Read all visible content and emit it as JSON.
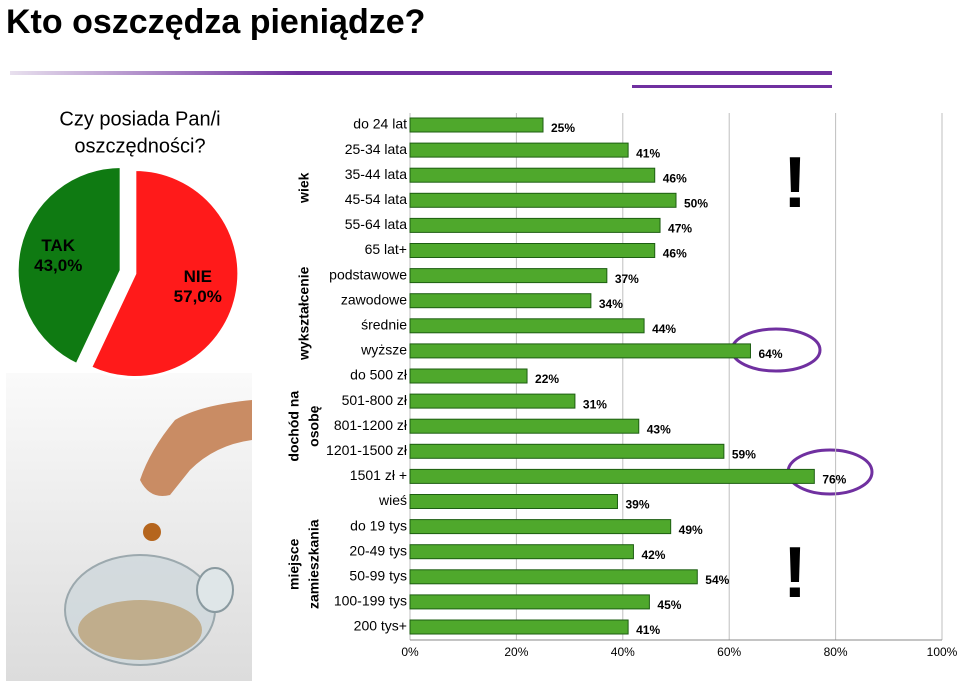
{
  "title": "Kto oszczędza pieniądze?",
  "chart_data": [
    {
      "type": "pie",
      "title": [
        "Czy posiada Pan/i",
        "oszczędności?"
      ],
      "categories": [
        "TAK",
        "NIE"
      ],
      "values": [
        43.0,
        57.0
      ],
      "value_labels": [
        "43,0%",
        "57,0%"
      ],
      "colors": [
        "#0f7a12",
        "#ff1a1a"
      ]
    },
    {
      "type": "bar",
      "orientation": "horizontal",
      "color": "#4fa82c",
      "groups": [
        {
          "name": [
            "wiek"
          ],
          "categories": [
            "do 24 lat",
            "25-34 lata",
            "35-44 lata",
            "45-54 lata",
            "55-64 lata",
            "65 lat+"
          ],
          "values": [
            25,
            41,
            46,
            50,
            47,
            46
          ],
          "value_labels": [
            "25%",
            "41%",
            "46%",
            "50%",
            "47%",
            "46%"
          ]
        },
        {
          "name": [
            "wykształcenie"
          ],
          "categories": [
            "podstawowe",
            "zawodowe",
            "średnie",
            "wyższe"
          ],
          "values": [
            37,
            34,
            44,
            64
          ],
          "value_labels": [
            "37%",
            "34%",
            "44%",
            "64%"
          ]
        },
        {
          "name": [
            "dochód na",
            "osobę"
          ],
          "categories": [
            "do 500 zł",
            "501-800 zł",
            "801-1200 zł",
            "1201-1500 zł",
            "1501 zł +"
          ],
          "values": [
            22,
            31,
            43,
            59,
            76
          ],
          "value_labels": [
            "22%",
            "31%",
            "43%",
            "59%",
            "76%"
          ]
        },
        {
          "name": [
            "miejsce",
            "zamieszkania"
          ],
          "categories": [
            "wieś",
            "do 19 tys",
            "20-49 tys",
            "50-99 tys",
            "100-199 tys",
            "200 tys+"
          ],
          "values": [
            39,
            49,
            42,
            54,
            45,
            41
          ],
          "value_labels": [
            "39%",
            "49%",
            "42%",
            "54%",
            "45%",
            "41%"
          ]
        }
      ],
      "xlim": [
        0,
        100
      ],
      "xticks": [
        {
          "value": 0,
          "label": "0%"
        },
        {
          "value": 20,
          "label": "20%"
        },
        {
          "value": 40,
          "label": "40%"
        },
        {
          "value": 60,
          "label": "60%"
        },
        {
          "value": 80,
          "label": "80%"
        },
        {
          "value": 100,
          "label": "100%"
        }
      ],
      "grid": true,
      "annotations": [
        "!",
        "!"
      ]
    }
  ]
}
